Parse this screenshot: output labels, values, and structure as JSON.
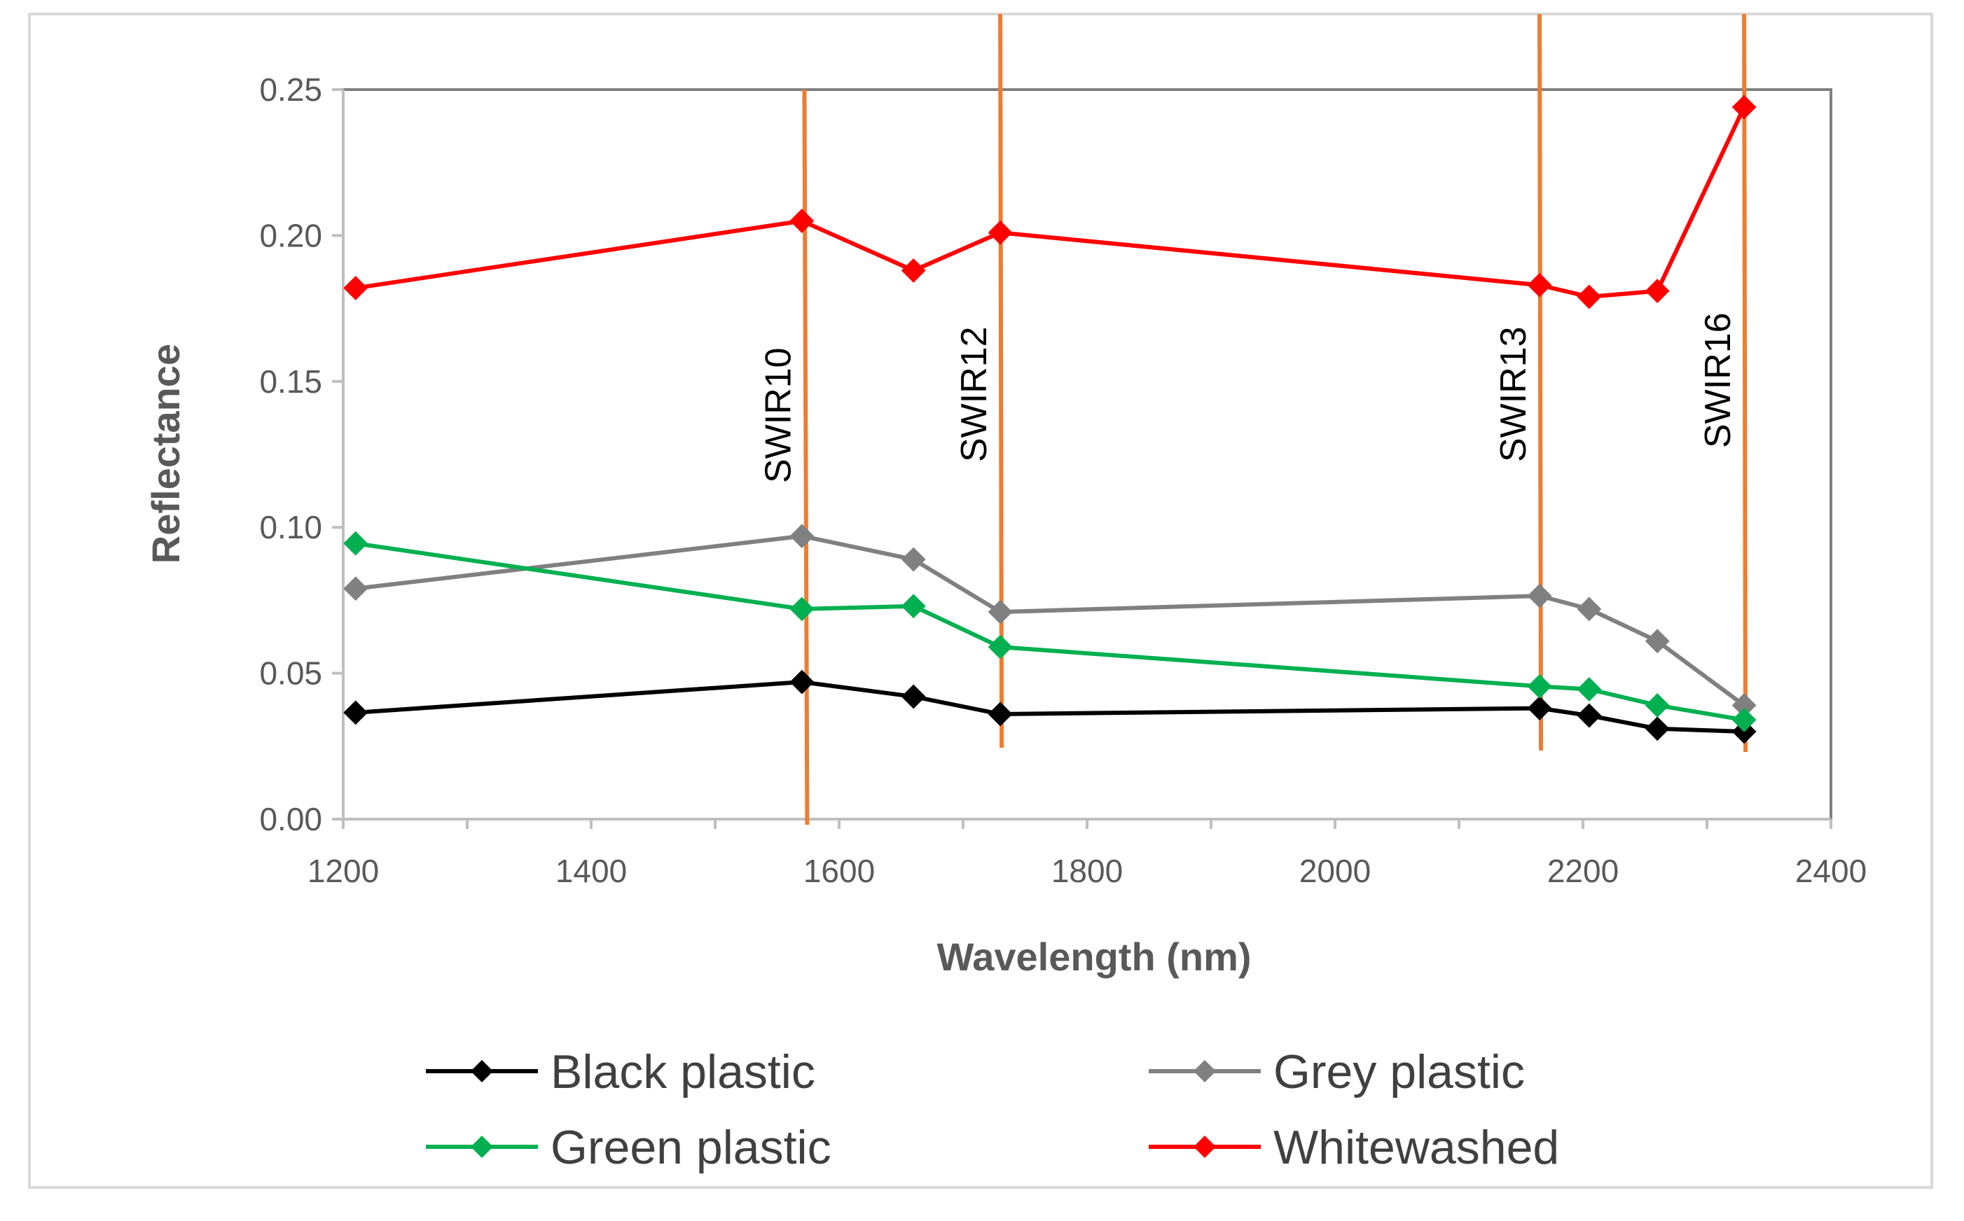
{
  "chart_data": {
    "type": "line",
    "title": "",
    "xlabel": "Wavelength (nm)",
    "ylabel": "Reflectance",
    "xlim": [
      1200,
      2400
    ],
    "ylim": [
      0,
      0.25
    ],
    "xticks": [
      1200,
      1400,
      1600,
      1800,
      2000,
      2200,
      2400
    ],
    "xtick_labels": [
      "1200",
      "1400",
      "1600",
      "1800",
      "2000",
      "2200",
      "2400"
    ],
    "yticks": [
      0,
      0.05,
      0.1,
      0.15,
      0.2,
      0.25
    ],
    "ytick_labels": [
      "0.00",
      "0.05",
      "0.10",
      "0.15",
      "0.20",
      "0.25"
    ],
    "grid": false,
    "legend_position": "bottom",
    "series": [
      {
        "name": "Black plastic",
        "color": "#000000",
        "x": [
          1210,
          1570,
          1660,
          1730,
          2165,
          2205,
          2260,
          2330
        ],
        "y": [
          0.0365,
          0.047,
          0.042,
          0.036,
          0.038,
          0.0355,
          0.031,
          0.03
        ]
      },
      {
        "name": "Grey plastic",
        "color": "#808080",
        "x": [
          1210,
          1570,
          1660,
          1730,
          2165,
          2205,
          2260,
          2330
        ],
        "y": [
          0.079,
          0.097,
          0.089,
          0.071,
          0.0765,
          0.072,
          0.061,
          0.039
        ]
      },
      {
        "name": "Green plastic",
        "color": "#00b050",
        "x": [
          1210,
          1570,
          1660,
          1730,
          2165,
          2205,
          2260,
          2330
        ],
        "y": [
          0.0945,
          0.072,
          0.073,
          0.059,
          0.0455,
          0.0445,
          0.039,
          0.034
        ]
      },
      {
        "name": "Whitewashed",
        "color": "#ff0000",
        "x": [
          1210,
          1570,
          1660,
          1730,
          2165,
          2205,
          2260,
          2330
        ],
        "y": [
          0.182,
          0.205,
          0.188,
          0.201,
          0.183,
          0.179,
          0.181,
          0.244
        ]
      }
    ],
    "band_markers": [
      {
        "label": "SWIR10",
        "x": 1572,
        "color": "#ed7d31"
      },
      {
        "label": "SWIR12",
        "x": 1730,
        "color": "#ed7d31"
      },
      {
        "label": "SWIR13",
        "x": 2165,
        "color": "#ed7d31"
      },
      {
        "label": "SWIR16",
        "x": 2330,
        "color": "#ed7d31"
      }
    ]
  }
}
